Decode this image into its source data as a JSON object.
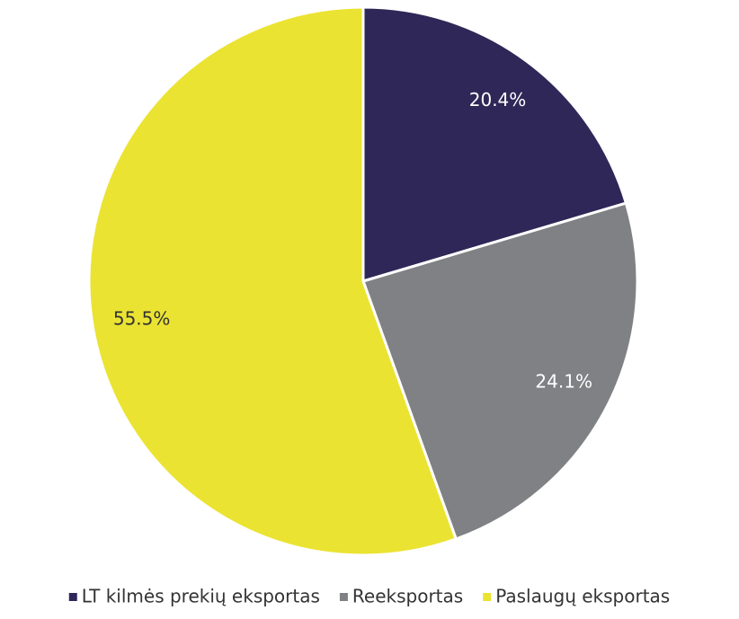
{
  "chart_data": {
    "type": "pie",
    "categories": [
      "LT kilmės prekių eksportas",
      "Reeksportas",
      "Paslaugų eksportas"
    ],
    "values": [
      20.4,
      24.1,
      55.5
    ],
    "value_labels": [
      "20.4%",
      "24.1%",
      "55.5%"
    ],
    "colors": [
      "#2e2757",
      "#808184",
      "#ebe332"
    ],
    "legend": "bottom"
  }
}
